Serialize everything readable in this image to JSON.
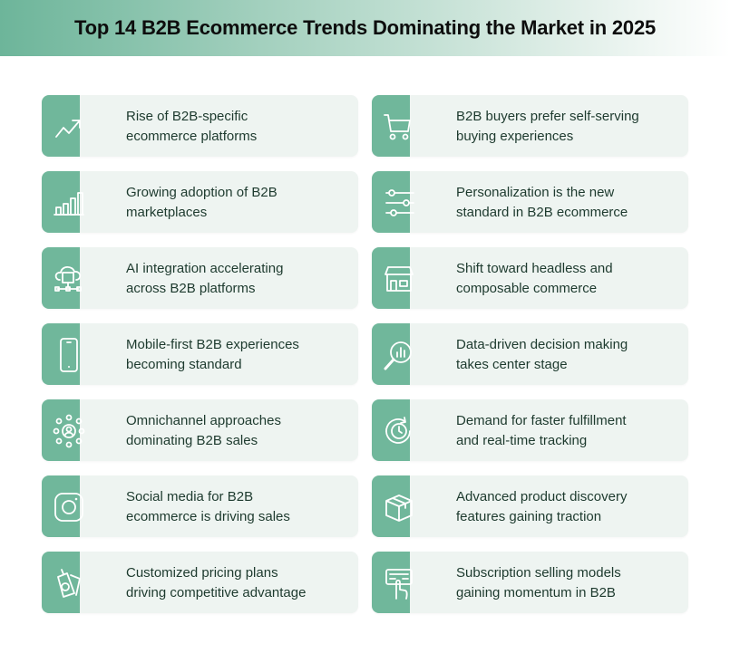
{
  "title": "Top 14 B2B Ecommerce Trends Dominating the Market in 2025",
  "colors": {
    "accent": "#70b79b",
    "card": "#eef4f1",
    "text": "#1d3a2e"
  },
  "trends": [
    {
      "icon": "trend-up-icon",
      "lines": [
        "Rise of B2B-specific",
        "ecommerce platforms"
      ]
    },
    {
      "icon": "shopping-cart-icon",
      "lines": [
        "B2B buyers prefer self-serving",
        "buying experiences"
      ]
    },
    {
      "icon": "bar-chart-icon",
      "lines": [
        "Growing adoption of B2B",
        "marketplaces"
      ]
    },
    {
      "icon": "sliders-icon",
      "lines": [
        "Personalization is the new",
        "standard in B2B ecommerce"
      ]
    },
    {
      "icon": "ai-cloud-icon",
      "lines": [
        "AI integration accelerating",
        "across B2B platforms"
      ]
    },
    {
      "icon": "storefront-icon",
      "lines": [
        "Shift toward headless and",
        "composable commerce"
      ]
    },
    {
      "icon": "mobile-phone-icon",
      "lines": [
        "Mobile-first B2B experiences",
        "becoming standard"
      ]
    },
    {
      "icon": "magnifier-chart-icon",
      "lines": [
        "Data-driven decision making",
        "takes center stage"
      ]
    },
    {
      "icon": "network-user-icon",
      "lines": [
        "Omnichannel approaches",
        "dominating B2B sales"
      ]
    },
    {
      "icon": "clock-refresh-icon",
      "lines": [
        "Demand for faster fulfillment",
        "and real-time tracking"
      ]
    },
    {
      "icon": "instagram-icon",
      "lines": [
        "Social media for B2B",
        "ecommerce is driving sales"
      ]
    },
    {
      "icon": "package-box-icon",
      "lines": [
        "Advanced product discovery",
        "features gaining traction"
      ]
    },
    {
      "icon": "price-tag-icon",
      "lines": [
        "Customized pricing plans",
        "driving competitive advantage"
      ]
    },
    {
      "icon": "subscription-hand-icon",
      "lines": [
        "Subscription selling models",
        "gaining momentum in B2B"
      ]
    }
  ]
}
